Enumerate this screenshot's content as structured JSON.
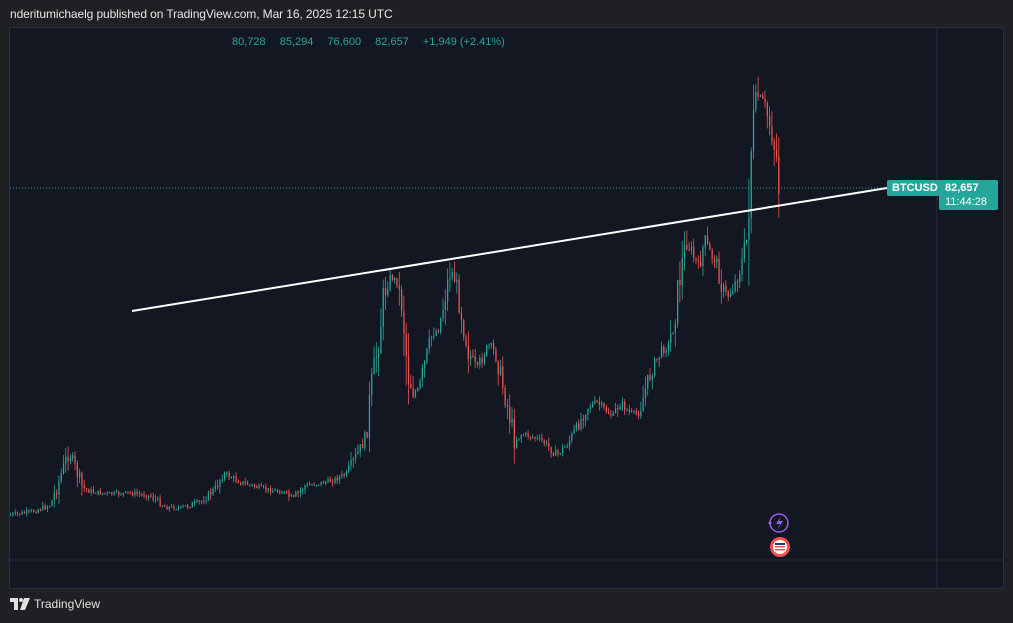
{
  "header": {
    "publish_line": "nderitumichaelg published on TradingView.com, Mar 16, 2025 12:15 UTC"
  },
  "ohlc": {
    "open": "80,728",
    "high": "85,294",
    "low": "76,600",
    "close": "82,657",
    "change": "+1,949 (+2.41%)"
  },
  "badges": {
    "ticker": "BTCUSD",
    "price": "82,657",
    "countdown": "11:44:28"
  },
  "footer": {
    "brand": "TradingView",
    "logo_icon": "tradingview-logo-icon"
  },
  "colors": {
    "up": "#26a69a",
    "down": "#ef5350",
    "background": "#131722",
    "trendline": "#ffffff"
  },
  "chart_data": {
    "type": "candlestick",
    "symbol": "BTCUSD",
    "interval_approx": "weekly",
    "x_range": [
      "2019",
      "2025-03"
    ],
    "y_approx_range": [
      3500,
      109000
    ],
    "series": [
      {
        "name": "BTCUSD",
        "anchor_points_close": [
          [
            "2019-01",
            3800
          ],
          [
            "2019-06",
            12000
          ],
          [
            "2019-12",
            7200
          ],
          [
            "2020-03",
            5000
          ],
          [
            "2020-10",
            13000
          ],
          [
            "2021-04",
            63000
          ],
          [
            "2021-07",
            30000
          ],
          [
            "2021-11",
            69000
          ],
          [
            "2022-06",
            20000
          ],
          [
            "2022-11",
            16000
          ],
          [
            "2023-03",
            28000
          ],
          [
            "2023-10",
            35000
          ],
          [
            "2024-03",
            73000
          ],
          [
            "2024-08",
            55000
          ],
          [
            "2024-11",
            90000
          ],
          [
            "2024-12",
            106000
          ],
          [
            "2025-01",
            109000
          ],
          [
            "2025-03",
            82657
          ]
        ]
      }
    ],
    "trendline": {
      "description": "ascending line connecting 2021 highs to current price",
      "from": [
        "2020-08",
        42000
      ],
      "to": [
        "2025-03",
        82657
      ]
    },
    "last_price": 82657,
    "grid": false
  }
}
